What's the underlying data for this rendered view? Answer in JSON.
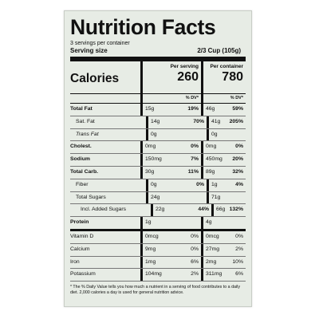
{
  "title": "Nutrition Facts",
  "servings_per_container": "3 servings per container",
  "serving_size_label": "Serving size",
  "serving_size_value": "2/3 Cup (105g)",
  "columns": {
    "per_serving": "Per serving",
    "per_container": "Per container"
  },
  "calories": {
    "label": "Calories",
    "per_serving": "260",
    "per_container": "780"
  },
  "dv_header": "% DV*",
  "rows": [
    {
      "name": "Total Fat",
      "ps_amt": "15g",
      "ps_dv": "19%",
      "pc_amt": "46g",
      "pc_dv": "59%"
    },
    {
      "name": "Sat. Fat",
      "ps_amt": "14g",
      "ps_dv": "70%",
      "pc_amt": "41g",
      "pc_dv": "205%"
    },
    {
      "name": "Trans Fat",
      "ps_amt": "0g",
      "ps_dv": "",
      "pc_amt": "0g",
      "pc_dv": ""
    },
    {
      "name": "Cholest.",
      "ps_amt": "0mg",
      "ps_dv": "0%",
      "pc_amt": "0mg",
      "pc_dv": "0%"
    },
    {
      "name": "Sodium",
      "ps_amt": "150mg",
      "ps_dv": "7%",
      "pc_amt": "450mg",
      "pc_dv": "20%"
    },
    {
      "name": "Total Carb.",
      "ps_amt": "30g",
      "ps_dv": "11%",
      "pc_amt": "89g",
      "pc_dv": "32%"
    },
    {
      "name": "Fiber",
      "ps_amt": "0g",
      "ps_dv": "0%",
      "pc_amt": "1g",
      "pc_dv": "4%"
    },
    {
      "name": "Total Sugars",
      "ps_amt": "24g",
      "ps_dv": "",
      "pc_amt": "71g",
      "pc_dv": ""
    },
    {
      "name": "Incl. Added Sugars",
      "ps_amt": "22g",
      "ps_dv": "44%",
      "pc_amt": "66g",
      "pc_dv": "132%"
    },
    {
      "name": "Protein",
      "ps_amt": "1g",
      "ps_dv": "",
      "pc_amt": "4g",
      "pc_dv": ""
    },
    {
      "name": "Vitamin D",
      "ps_amt": "0mcg",
      "ps_dv": "0%",
      "pc_amt": "0mcg",
      "pc_dv": "0%"
    },
    {
      "name": "Calcium",
      "ps_amt": "9mg",
      "ps_dv": "0%",
      "pc_amt": "27mg",
      "pc_dv": "2%"
    },
    {
      "name": "Iron",
      "ps_amt": "1mg",
      "ps_dv": "6%",
      "pc_amt": "2mg",
      "pc_dv": "10%"
    },
    {
      "name": "Potassium",
      "ps_amt": "104mg",
      "ps_dv": "2%",
      "pc_amt": "311mg",
      "pc_dv": "6%"
    }
  ],
  "footnote": "* The % Daily Value tells you how much a nutrient in a serving of food contributes to a daily diet. 2,000 calories a day is used for general nutrition advice."
}
